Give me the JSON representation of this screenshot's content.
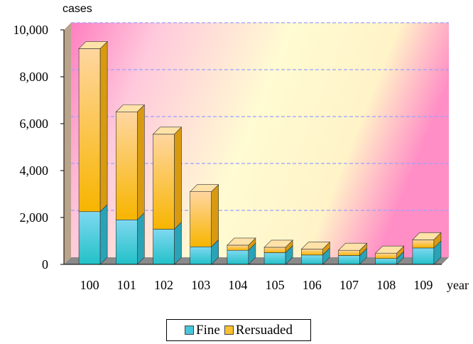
{
  "chart_data": {
    "type": "bar",
    "stacked": true,
    "ylabel": "cases",
    "xlabel": "year",
    "categories": [
      "100",
      "101",
      "102",
      "103",
      "104",
      "105",
      "106",
      "107",
      "108",
      "109"
    ],
    "series": [
      {
        "name": "Fine",
        "color": "#46c6dc",
        "values": [
          2250,
          1900,
          1500,
          750,
          600,
          500,
          400,
          380,
          250,
          700
        ]
      },
      {
        "name": "Rersuaded",
        "color": "#f9c030",
        "values": [
          6950,
          4600,
          4050,
          2350,
          220,
          230,
          250,
          220,
          230,
          350
        ]
      }
    ],
    "ylim": [
      0,
      10000
    ],
    "yticks": [
      "0",
      "2,000",
      "4,000",
      "6,000",
      "8,000",
      "10,000"
    ],
    "grid": true,
    "legend_position": "bottom"
  }
}
